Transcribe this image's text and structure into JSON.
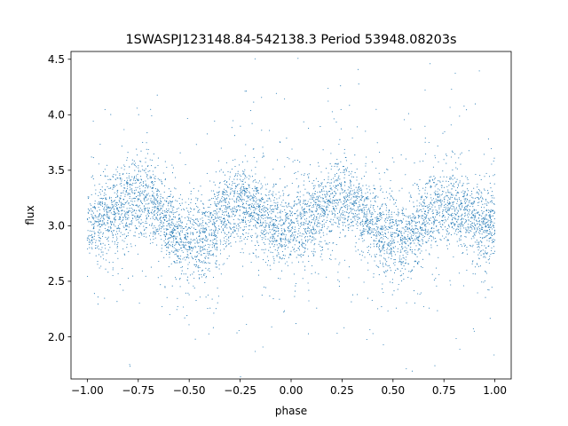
{
  "chart_data": {
    "type": "scatter",
    "title": "1SWASPJ123148.84-542138.3 Period 53948.08203s",
    "xlabel": "phase",
    "ylabel": "flux",
    "xlim": [
      -1.08,
      1.08
    ],
    "ylim": [
      1.62,
      4.57
    ],
    "xticks": [
      -1.0,
      -0.75,
      -0.5,
      -0.25,
      0.0,
      0.25,
      0.5,
      0.75,
      1.0
    ],
    "xtick_labels": [
      "−1.00",
      "−0.75",
      "−0.50",
      "−0.25",
      "0.00",
      "0.25",
      "0.50",
      "0.75",
      "1.00"
    ],
    "yticks": [
      2.0,
      2.5,
      3.0,
      3.5,
      4.0,
      4.5
    ],
    "ytick_labels": [
      "2.0",
      "2.5",
      "3.0",
      "3.5",
      "4.0",
      "4.5"
    ],
    "grid": false,
    "marker_color": "#1f77b4",
    "series": [
      {
        "x": [
          -1.0,
          -0.95,
          -0.9,
          -0.85,
          -0.8,
          -0.75,
          -0.7,
          -0.65,
          -0.6,
          -0.55,
          -0.5,
          -0.45,
          -0.4,
          -0.35,
          -0.3,
          -0.25,
          -0.2,
          -0.15,
          -0.1,
          -0.05,
          0.0,
          0.05,
          0.1,
          0.15,
          0.2,
          0.25,
          0.3,
          0.35,
          0.4,
          0.45,
          0.5,
          0.55,
          0.6,
          0.65,
          0.7,
          0.75,
          0.8,
          0.85,
          0.9,
          0.95,
          1.0
        ],
        "y": [
          3.02,
          3.02,
          3.08,
          3.16,
          3.22,
          3.25,
          3.22,
          3.14,
          3.02,
          2.92,
          2.88,
          2.86,
          2.92,
          3.05,
          3.16,
          3.2,
          3.18,
          3.12,
          3.04,
          2.98,
          2.98,
          3.02,
          3.08,
          3.16,
          3.22,
          3.25,
          3.22,
          3.14,
          3.02,
          2.92,
          2.88,
          2.86,
          2.92,
          3.05,
          3.16,
          3.2,
          3.18,
          3.12,
          3.04,
          2.98,
          3.02
        ]
      }
    ]
  }
}
